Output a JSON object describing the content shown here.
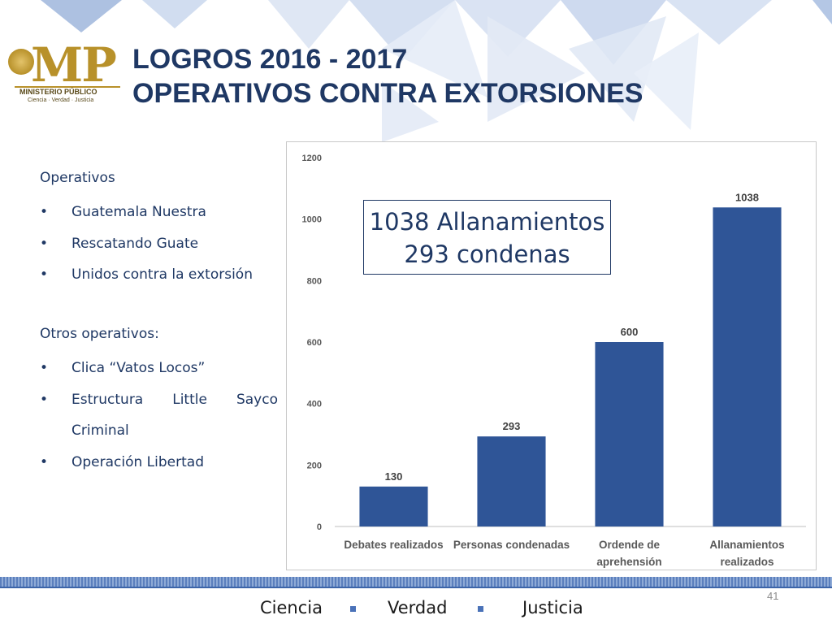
{
  "slide": {
    "title_line1": "LOGROS 2016 - 2017",
    "title_line2": "OPERATIVOS CONTRA EXTORSIONES",
    "page_number": "41"
  },
  "logo": {
    "mark": "MP",
    "name": "MINISTERIO PÚBLICO",
    "tagline": "Ciencia · Verdad · Justicia"
  },
  "left_list": {
    "heading1": "Operativos",
    "group1": [
      "Guatemala Nuestra",
      "Rescatando Guate",
      "Unidos contra la extorsión"
    ],
    "heading2": "Otros operativos:",
    "group2_item1": "Clica “Vatos Locos”",
    "group2_item2_line1": "Estructura Little Sayco",
    "group2_item2_line2": "Criminal",
    "group2_item3": "Operación Libertad",
    "bullet": "•"
  },
  "callout": {
    "line1": "1038 Allanamientos",
    "line2": "293 condenas"
  },
  "footer": {
    "word1": "Ciencia",
    "word2": "Verdad",
    "word3": "Justicia"
  },
  "colors": {
    "bar": "#2f5597",
    "title": "#1f3864",
    "gold": "#b8912a"
  },
  "chart_data": {
    "type": "bar",
    "categories": [
      [
        "Debates realizados"
      ],
      [
        "Personas condenadas"
      ],
      [
        "Ordende de",
        "aprehensión"
      ],
      [
        "Allanamientos",
        "realizados"
      ]
    ],
    "values": [
      130,
      293,
      600,
      1038
    ],
    "data_labels": [
      "130",
      "293",
      "600",
      "1038"
    ],
    "yticks": [
      "0",
      "200",
      "400",
      "600",
      "800",
      "1000",
      "1200"
    ],
    "ylim": [
      0,
      1200
    ],
    "grid": false,
    "legend": "none"
  }
}
